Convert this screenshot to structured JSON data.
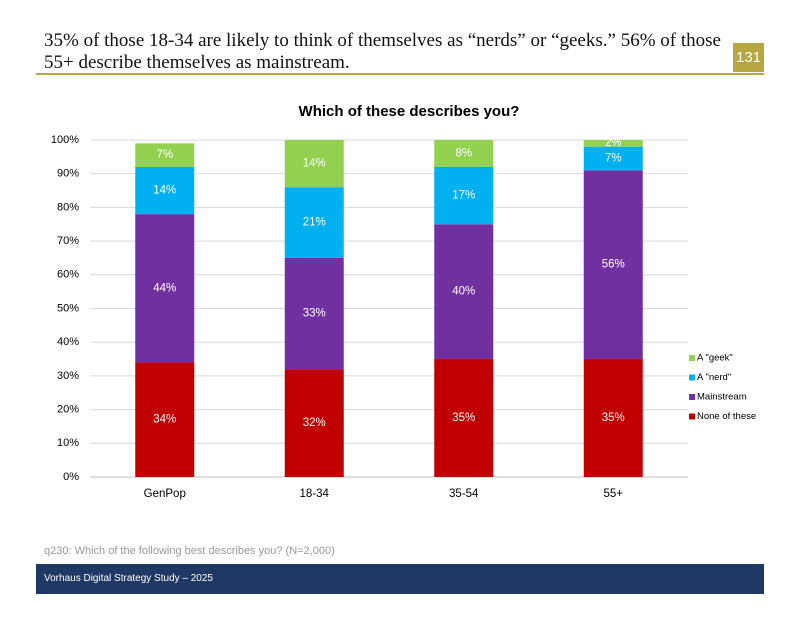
{
  "header": {
    "title": "35% of those 18-34 are likely to think of themselves as “nerds” or “geeks.”  56% of those 55+ describe themselves as mainstream.",
    "page_number": "131"
  },
  "footnote": "q230: Which of the following best describes you? (N=2,000)",
  "footer": {
    "text": "Vorhaus Digital Strategy Study – 2025"
  },
  "colors": {
    "accent": "#b5a642",
    "footer_bg": "#1f3864",
    "grid": "#d9d9d9",
    "axis": "#bfbfbf"
  },
  "chart_data": {
    "type": "bar",
    "stacked": true,
    "title": "Which of these describes you?",
    "categories": [
      "GenPop",
      "18-34",
      "35-54",
      "55+"
    ],
    "ylim": [
      0,
      100
    ],
    "yticks": [
      0,
      10,
      20,
      30,
      40,
      50,
      60,
      70,
      80,
      90,
      100
    ],
    "ytick_labels": [
      "0%",
      "10%",
      "20%",
      "30%",
      "40%",
      "50%",
      "60%",
      "70%",
      "80%",
      "90%",
      "100%"
    ],
    "grid": true,
    "legend_position": "right",
    "series": [
      {
        "name": "None of these",
        "color": "#c00000",
        "values": [
          34,
          32,
          35,
          35
        ],
        "labels": [
          "34%",
          "32%",
          "35%",
          "35%"
        ]
      },
      {
        "name": "Mainstream",
        "color": "#7030a0",
        "values": [
          44,
          33,
          40,
          56
        ],
        "labels": [
          "44%",
          "33%",
          "40%",
          "56%"
        ]
      },
      {
        "name": "A \"nerd\"",
        "color": "#00b0f0",
        "values": [
          14,
          21,
          17,
          7
        ],
        "labels": [
          "14%",
          "21%",
          "17%",
          "7%"
        ]
      },
      {
        "name": "A \"geek\"",
        "color": "#92d050",
        "values": [
          7,
          14,
          8,
          2
        ],
        "labels": [
          "7%",
          "14%",
          "8%",
          "2%"
        ]
      }
    ]
  }
}
